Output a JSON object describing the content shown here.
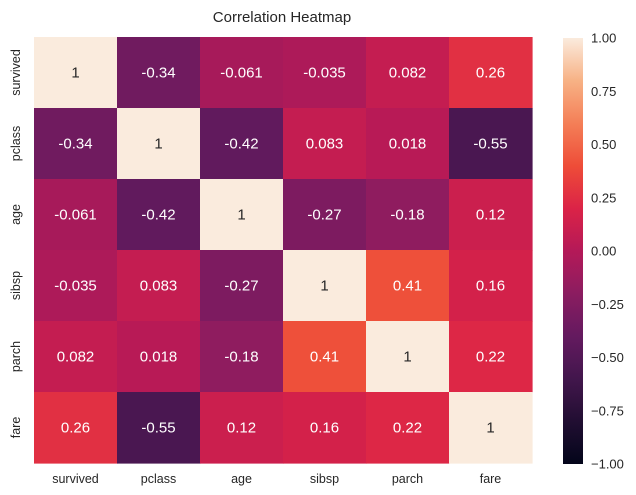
{
  "chart_data": {
    "type": "heatmap",
    "title": "Correlation Heatmap",
    "x_labels": [
      "survived",
      "pclass",
      "age",
      "sibsp",
      "parch",
      "fare"
    ],
    "y_labels": [
      "survived",
      "pclass",
      "age",
      "sibsp",
      "parch",
      "fare"
    ],
    "values": [
      [
        1,
        -0.34,
        -0.061,
        -0.035,
        0.082,
        0.26
      ],
      [
        -0.34,
        1,
        -0.42,
        0.083,
        0.018,
        -0.55
      ],
      [
        -0.061,
        -0.42,
        1,
        -0.27,
        -0.18,
        0.12
      ],
      [
        -0.035,
        0.083,
        -0.27,
        1,
        0.41,
        0.16
      ],
      [
        0.082,
        0.018,
        -0.18,
        0.41,
        1,
        0.22
      ],
      [
        0.26,
        -0.55,
        0.12,
        0.16,
        0.22,
        1
      ]
    ],
    "annotations": [
      [
        "1",
        "-0.34",
        "-0.061",
        "-0.035",
        "0.082",
        "0.26"
      ],
      [
        "-0.34",
        "1",
        "-0.42",
        "0.083",
        "0.018",
        "-0.55"
      ],
      [
        "-0.061",
        "-0.42",
        "1",
        "-0.27",
        "-0.18",
        "0.12"
      ],
      [
        "-0.035",
        "0.083",
        "-0.27",
        "1",
        "0.41",
        "0.16"
      ],
      [
        "0.082",
        "0.018",
        "-0.18",
        "0.41",
        "1",
        "0.22"
      ],
      [
        "0.26",
        "-0.55",
        "0.12",
        "0.16",
        "0.22",
        "1"
      ]
    ],
    "vmin": -1,
    "vmax": 1,
    "colormap": "rocket",
    "colorbar_ticks": [
      1.0,
      0.75,
      0.5,
      0.25,
      0.0,
      -0.25,
      -0.5,
      -0.75,
      -1.0
    ],
    "colorbar_tick_labels": [
      "1.00",
      "0.75",
      "0.50",
      "0.25",
      "0.00",
      "−0.25",
      "−0.50",
      "−0.75",
      "−1.00"
    ],
    "grid": false
  }
}
